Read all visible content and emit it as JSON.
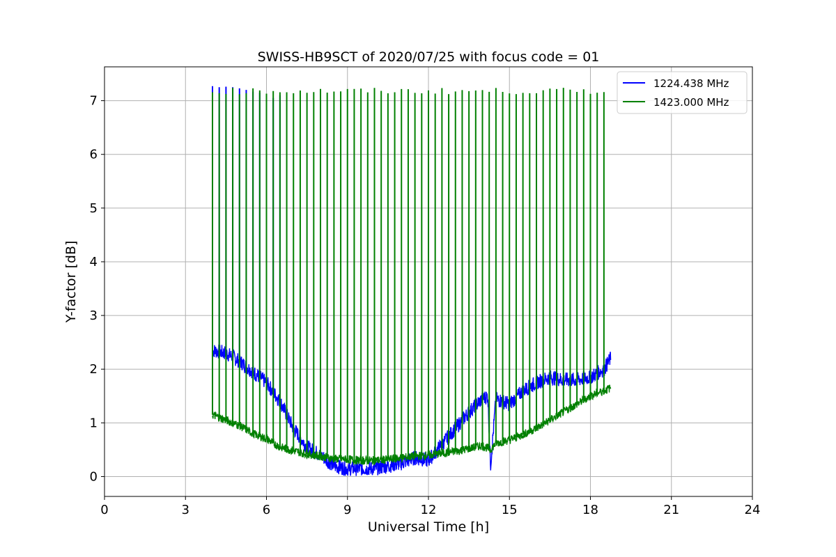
{
  "chart_data": {
    "type": "line",
    "title": "SWISS-HB9SCT of 2020/07/25 with focus code = 01",
    "xlabel": "Universal Time [h]",
    "ylabel": "Y-factor [dB]",
    "xlim": [
      0,
      24
    ],
    "ylim": [
      -0.37,
      7.63
    ],
    "xticks": [
      0,
      3,
      6,
      9,
      12,
      15,
      18,
      21,
      24
    ],
    "yticks": [
      0,
      1,
      2,
      3,
      4,
      5,
      6,
      7
    ],
    "grid": true,
    "legend_position": "top-right",
    "series": [
      {
        "name": "1224.438 MHz",
        "color": "#0000ff",
        "x": [
          4.0,
          4.5,
          5.0,
          5.5,
          6.0,
          6.5,
          7.0,
          7.5,
          8.0,
          8.5,
          9.0,
          9.5,
          10.0,
          10.5,
          11.0,
          11.5,
          12.0,
          12.5,
          13.0,
          13.5,
          14.0,
          14.2,
          14.3,
          14.5,
          15.0,
          15.5,
          16.0,
          16.5,
          17.0,
          17.5,
          18.0,
          18.5,
          18.75
        ],
        "y": [
          2.35,
          2.3,
          2.15,
          1.95,
          1.75,
          1.4,
          0.9,
          0.55,
          0.4,
          0.2,
          0.15,
          0.15,
          0.15,
          0.2,
          0.25,
          0.35,
          0.3,
          0.6,
          0.9,
          1.2,
          1.45,
          1.5,
          0.2,
          1.45,
          1.35,
          1.6,
          1.75,
          1.85,
          1.8,
          1.8,
          1.85,
          2.0,
          2.2
        ],
        "spike_times": [
          4.0,
          4.25,
          4.5,
          4.75,
          5.0,
          5.25,
          5.5,
          5.75,
          6.0,
          6.25,
          6.5
        ],
        "spike_peaks": [
          7.27,
          7.25,
          7.26,
          7.25,
          7.23,
          7.2,
          7.17,
          7.15,
          7.1,
          7.05,
          7.1
        ]
      },
      {
        "name": "1423.000 MHz",
        "color": "#008000",
        "x": [
          4.0,
          4.5,
          5.0,
          5.5,
          6.0,
          6.5,
          7.0,
          7.5,
          8.0,
          8.5,
          9.0,
          9.5,
          10.0,
          10.5,
          11.0,
          11.5,
          12.0,
          12.5,
          13.0,
          13.5,
          14.0,
          14.3,
          14.5,
          15.0,
          15.5,
          16.0,
          16.5,
          17.0,
          17.5,
          18.0,
          18.5,
          18.75
        ],
        "y": [
          1.15,
          1.05,
          0.95,
          0.8,
          0.7,
          0.55,
          0.48,
          0.42,
          0.38,
          0.33,
          0.32,
          0.3,
          0.3,
          0.32,
          0.35,
          0.38,
          0.4,
          0.43,
          0.47,
          0.52,
          0.58,
          0.5,
          0.62,
          0.68,
          0.78,
          0.9,
          1.05,
          1.2,
          1.35,
          1.5,
          1.6,
          1.65
        ],
        "spike_period_h": 0.25,
        "spike_start_h": 4.0,
        "spike_end_h": 18.5,
        "spike_peak": 7.18
      }
    ]
  }
}
